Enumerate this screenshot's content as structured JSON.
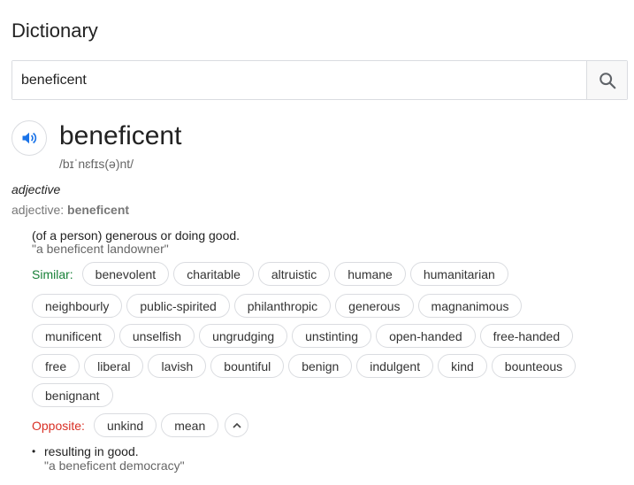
{
  "page": {
    "title": "Dictionary"
  },
  "search": {
    "value": "beneficent"
  },
  "entry": {
    "word": "beneficent",
    "phonetic": "/bɪˈnɛfɪs(ə)nt/",
    "part_of_speech": "adjective",
    "forms_label": "adjective:",
    "forms_value": "beneficent",
    "definition": "(of a person) generous or doing good.",
    "example": "\"a beneficent landowner\"",
    "similar_label": "Similar:",
    "similar_rows": [
      [
        "benevolent",
        "charitable",
        "altruistic",
        "humane",
        "humanitarian"
      ],
      [
        "neighbourly",
        "public-spirited",
        "philanthropic",
        "generous",
        "magnanimous"
      ],
      [
        "munificent",
        "unselfish",
        "ungrudging",
        "unstinting",
        "open-handed",
        "free-handed"
      ],
      [
        "free",
        "liberal",
        "lavish",
        "bountiful",
        "benign",
        "indulgent",
        "kind",
        "bounteous"
      ],
      [
        "benignant"
      ]
    ],
    "opposite_label": "Opposite:",
    "opposites": [
      "unkind",
      "mean"
    ],
    "definition2": "resulting in good.",
    "example2": "\"a beneficent democracy\""
  },
  "icons": {
    "search": "search-icon",
    "speaker": "speaker-icon",
    "collapse": "chevron-up-icon"
  },
  "colors": {
    "speaker": "#1a73e8",
    "similar": "#188038",
    "opposite": "#d93025"
  }
}
